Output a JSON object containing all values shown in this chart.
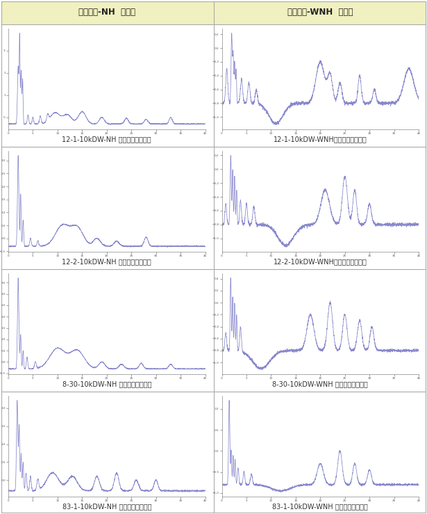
{
  "title_left": "물분획물-NH  정제물",
  "title_right": "물분획물-WNH  정제물",
  "header_bg": "#f0f0c0",
  "header_border": "#aaaaaa",
  "cell_border": "#aaaaaa",
  "line_color": "#8888cc",
  "bg_color": "#ffffff",
  "captions": [
    [
      "12-1-10kDW-NH 분석크로마토그램",
      "12-1-10kDW-WNH분석크로마토그램"
    ],
    [
      "12-2-10kDW-NH 분석크로마토그램",
      "12-2-10kDW-WNH분석크로마토그램"
    ],
    [
      "8-30-10kDW-NH 분석크로마토그램",
      "8-30-10kDW-WNH 분석크로마토그램"
    ],
    [
      "83-1-10kDW-NH 분석크로마토그램",
      "83-1-10kDW-WNH 분석크로마토그램"
    ]
  ],
  "n_rows": 4,
  "n_cols": 2
}
